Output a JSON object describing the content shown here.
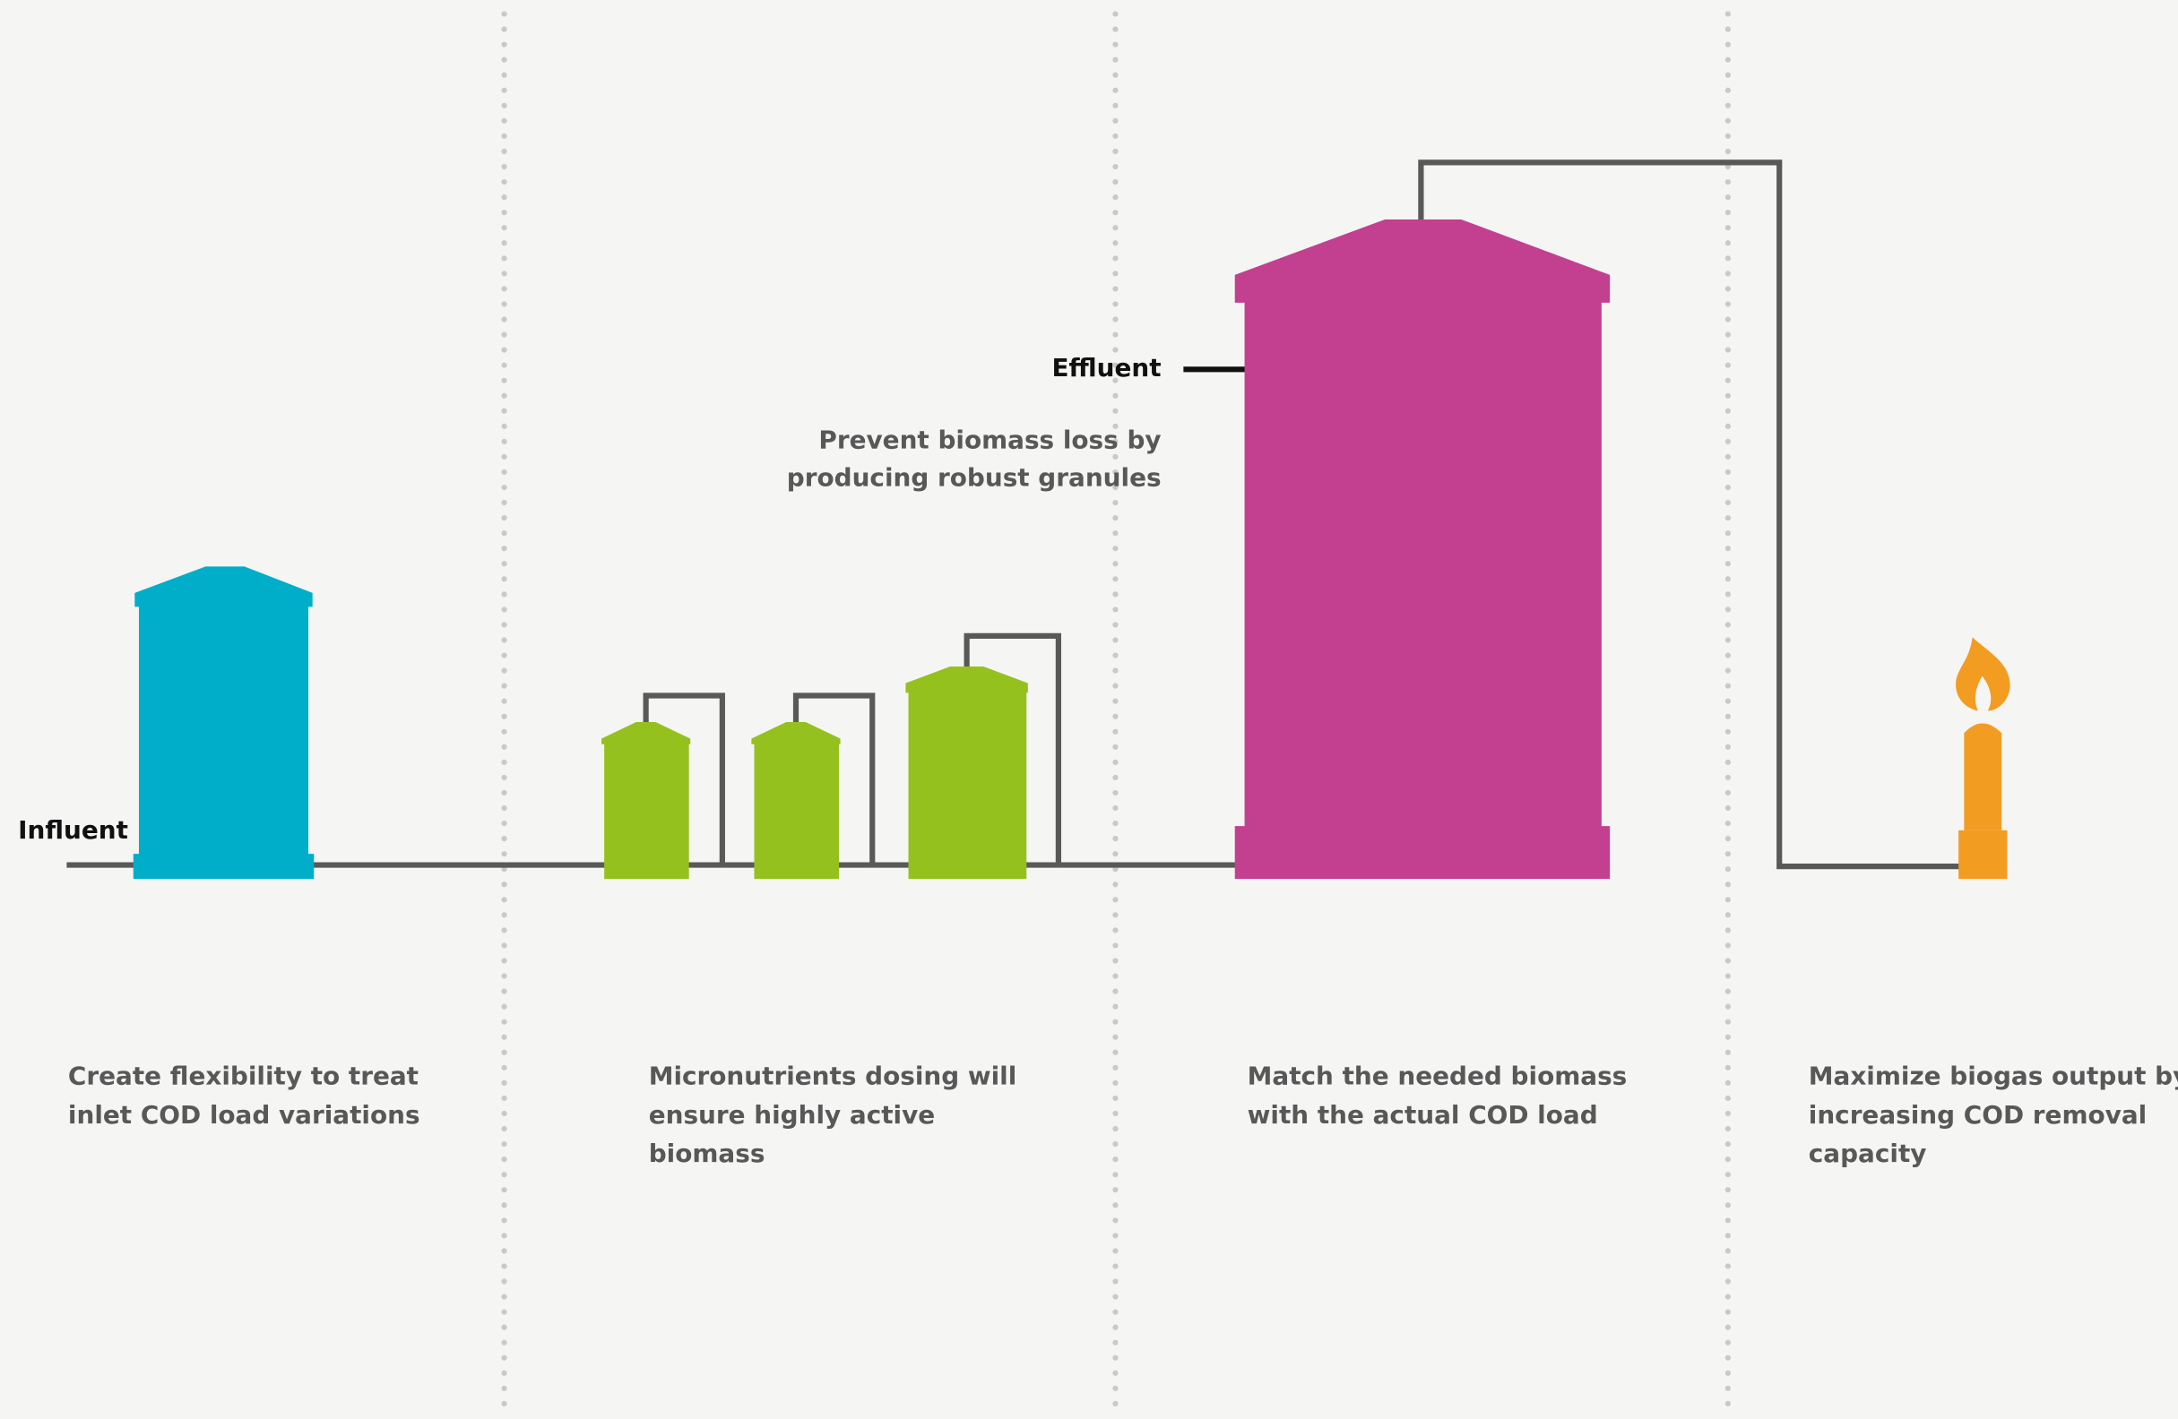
{
  "labels": {
    "influent": "Influent",
    "effluent": "Effluent"
  },
  "annotation": [
    "Prevent biomass loss by",
    "producing robust granules"
  ],
  "steps": [
    {
      "lines": [
        "Create flexibility to treat",
        "inlet COD load variations"
      ]
    },
    {
      "lines": [
        "Micronutrients dosing will",
        "ensure highly active",
        "biomass"
      ]
    },
    {
      "lines": [
        "Match the needed biomass",
        "with the actual COD load"
      ]
    },
    {
      "lines": [
        "Maximize biogas output by",
        "increasing COD removal",
        "capacity"
      ]
    }
  ]
}
